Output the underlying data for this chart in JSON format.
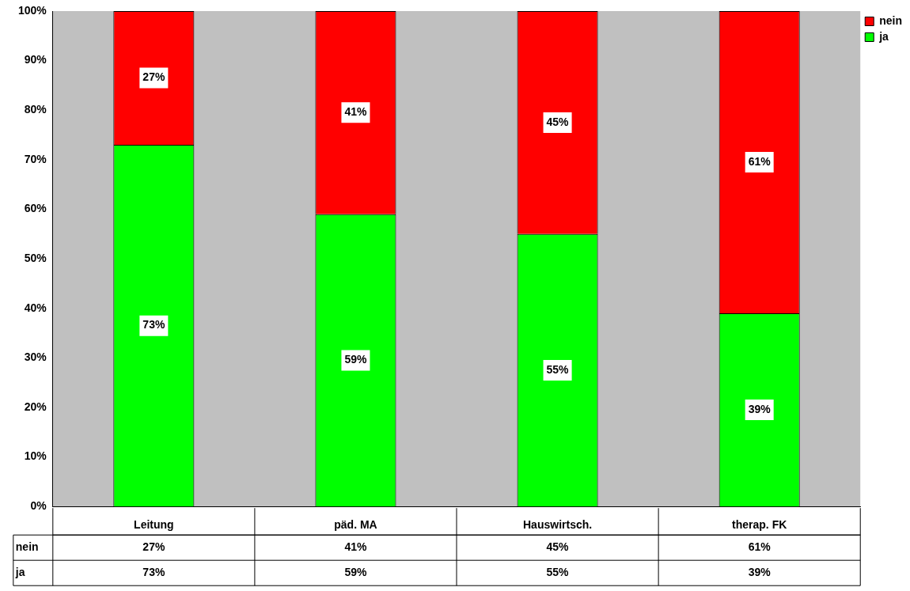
{
  "chart_data": {
    "type": "bar",
    "stacked": true,
    "categories": [
      "Leitung",
      "päd. MA",
      "Hauswirtsch.",
      "therap. FK"
    ],
    "series": [
      {
        "name": "ja",
        "color": "#00ff00",
        "values": [
          73,
          59,
          55,
          39
        ],
        "value_labels": [
          "73%",
          "59%",
          "55%",
          "39%"
        ]
      },
      {
        "name": "nein",
        "color": "#ff0000",
        "values": [
          27,
          41,
          45,
          61
        ],
        "value_labels": [
          "27%",
          "41%",
          "45%",
          "61%"
        ]
      }
    ],
    "ylim": [
      0,
      100
    ],
    "yticks": [
      {
        "value": 0,
        "label": "0%"
      },
      {
        "value": 10,
        "label": "10%"
      },
      {
        "value": 20,
        "label": "20%"
      },
      {
        "value": 30,
        "label": "30%"
      },
      {
        "value": 40,
        "label": "40%"
      },
      {
        "value": 50,
        "label": "50%"
      },
      {
        "value": 60,
        "label": "60%"
      },
      {
        "value": 70,
        "label": "70%"
      },
      {
        "value": 80,
        "label": "80%"
      },
      {
        "value": 90,
        "label": "90%"
      },
      {
        "value": 100,
        "label": "100%"
      }
    ],
    "legend": "top right"
  }
}
